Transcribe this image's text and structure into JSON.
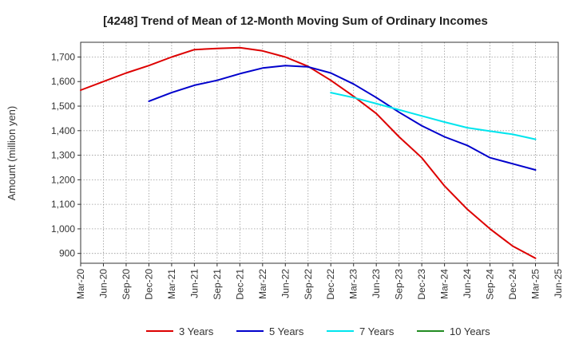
{
  "chart_data": {
    "type": "line",
    "title": "[4248]  Trend of Mean of 12-Month Moving Sum of Ordinary Incomes",
    "xlabel": "",
    "ylabel": "Amount (million yen)",
    "ylim": [
      860,
      1760
    ],
    "yticks": [
      900,
      1000,
      1100,
      1200,
      1300,
      1400,
      1500,
      1600,
      1700
    ],
    "ytick_labels": [
      "900",
      "1,000",
      "1,100",
      "1,200",
      "1,300",
      "1,400",
      "1,500",
      "1,600",
      "1,700"
    ],
    "xticks": [
      "Mar-20",
      "Jun-20",
      "Sep-20",
      "Dec-20",
      "Mar-21",
      "Jun-21",
      "Sep-21",
      "Dec-21",
      "Mar-22",
      "Jun-22",
      "Sep-22",
      "Dec-22",
      "Mar-23",
      "Jun-23",
      "Sep-23",
      "Dec-23",
      "Mar-24",
      "Jun-24",
      "Sep-24",
      "Dec-24",
      "Mar-25",
      "Jun-25"
    ],
    "grid": true,
    "legend_position": "bottom",
    "series": [
      {
        "name": "3 Years",
        "color": "#dd0000",
        "points": [
          [
            0,
            1565
          ],
          [
            1,
            1600
          ],
          [
            2,
            1635
          ],
          [
            3,
            1665
          ],
          [
            4,
            1700
          ],
          [
            5,
            1730
          ],
          [
            6,
            1735
          ],
          [
            7,
            1738
          ],
          [
            8,
            1725
          ],
          [
            9,
            1700
          ],
          [
            10,
            1662
          ],
          [
            11,
            1605
          ],
          [
            12,
            1540
          ],
          [
            13,
            1470
          ],
          [
            14,
            1375
          ],
          [
            15,
            1290
          ],
          [
            16,
            1175
          ],
          [
            17,
            1080
          ],
          [
            18,
            1000
          ],
          [
            19,
            930
          ],
          [
            20,
            880
          ]
        ]
      },
      {
        "name": "5 Years",
        "color": "#0000cc",
        "points": [
          [
            3,
            1520
          ],
          [
            4,
            1555
          ],
          [
            5,
            1585
          ],
          [
            6,
            1605
          ],
          [
            7,
            1632
          ],
          [
            8,
            1655
          ],
          [
            9,
            1665
          ],
          [
            10,
            1660
          ],
          [
            11,
            1635
          ],
          [
            12,
            1590
          ],
          [
            13,
            1535
          ],
          [
            14,
            1475
          ],
          [
            15,
            1420
          ],
          [
            16,
            1375
          ],
          [
            17,
            1340
          ],
          [
            18,
            1290
          ],
          [
            19,
            1265
          ],
          [
            20,
            1240
          ]
        ]
      },
      {
        "name": "7 Years",
        "color": "#00e5ee",
        "points": [
          [
            11,
            1555
          ],
          [
            12,
            1535
          ],
          [
            13,
            1510
          ],
          [
            14,
            1485
          ],
          [
            15,
            1460
          ],
          [
            16,
            1435
          ],
          [
            17,
            1412
          ],
          [
            18,
            1398
          ],
          [
            19,
            1385
          ],
          [
            20,
            1365
          ]
        ]
      },
      {
        "name": "10 Years",
        "color": "#228b22",
        "points": []
      }
    ]
  }
}
